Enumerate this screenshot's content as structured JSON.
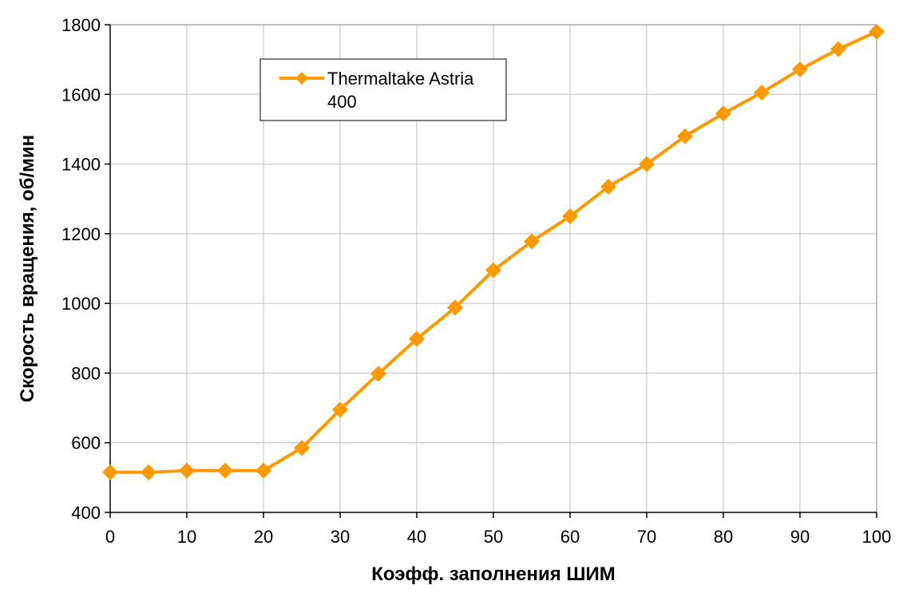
{
  "chart_data": {
    "type": "line",
    "title": "",
    "xlabel": "Коэфф. заполнения ШИМ",
    "ylabel": "Скорость вращения, об/мин",
    "xlim": [
      0,
      100
    ],
    "ylim": [
      400,
      1800
    ],
    "x_ticks": [
      0,
      10,
      20,
      30,
      40,
      50,
      60,
      70,
      80,
      90,
      100
    ],
    "y_ticks": [
      400,
      600,
      800,
      1000,
      1200,
      1400,
      1600,
      1800
    ],
    "grid": true,
    "legend_position": "top-center",
    "series": [
      {
        "name": "Thermaltake Astria 400",
        "legend_lines": [
          "Thermaltake Astria",
          "400"
        ],
        "color": "#FF9900",
        "marker": "diamond",
        "points": [
          {
            "x": 0,
            "y": 515
          },
          {
            "x": 5,
            "y": 515
          },
          {
            "x": 10,
            "y": 520
          },
          {
            "x": 15,
            "y": 520
          },
          {
            "x": 20,
            "y": 520
          },
          {
            "x": 25,
            "y": 585
          },
          {
            "x": 30,
            "y": 695
          },
          {
            "x": 35,
            "y": 798
          },
          {
            "x": 40,
            "y": 898
          },
          {
            "x": 45,
            "y": 988
          },
          {
            "x": 50,
            "y": 1095
          },
          {
            "x": 55,
            "y": 1178
          },
          {
            "x": 60,
            "y": 1250
          },
          {
            "x": 65,
            "y": 1335
          },
          {
            "x": 70,
            "y": 1400
          },
          {
            "x": 75,
            "y": 1480
          },
          {
            "x": 80,
            "y": 1545
          },
          {
            "x": 85,
            "y": 1605
          },
          {
            "x": 90,
            "y": 1672
          },
          {
            "x": 95,
            "y": 1730
          },
          {
            "x": 100,
            "y": 1780
          }
        ]
      }
    ]
  }
}
